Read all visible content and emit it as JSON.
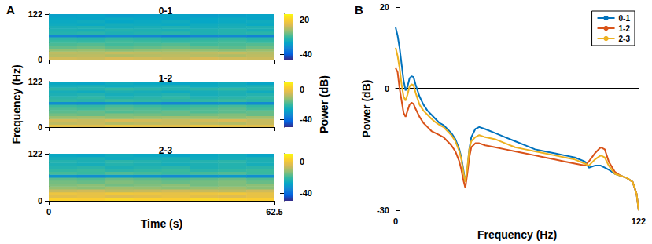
{
  "chart_data": [
    {
      "type": "heatmap",
      "panel": "A",
      "title": "0-1",
      "tick_labels": "y",
      "xlim": [
        0,
        62.5
      ],
      "xticks": [
        0,
        62.5
      ],
      "ylim": [
        0,
        122
      ],
      "yticks": [
        0,
        122
      ],
      "x_bins": [
        0,
        7.8125,
        15.625,
        23.4375,
        31.25,
        39.0625,
        46.875,
        54.6875,
        62.5
      ],
      "y_bins": [
        0,
        7.625,
        15.25,
        22.875,
        30.5,
        38.125,
        45.75,
        53.375,
        61,
        68.625,
        76.25,
        83.875,
        91.5,
        99.125,
        106.75,
        114.375,
        122
      ],
      "cells": [
        [
          9,
          8,
          10,
          9,
          8,
          10,
          9,
          8
        ],
        [
          5,
          6,
          4,
          5,
          6,
          5,
          4,
          6
        ],
        [
          6,
          5,
          7,
          6,
          5,
          6,
          7,
          5
        ],
        [
          0,
          1,
          -1,
          0,
          1,
          0,
          -1,
          1
        ],
        [
          -5,
          -4,
          -6,
          -5,
          -4,
          -5,
          -6,
          -4
        ],
        [
          -8,
          -7,
          -9,
          -8,
          -7,
          -9,
          -8,
          -7
        ],
        [
          -10,
          -11,
          -9,
          -10,
          -11,
          -10,
          -9,
          -11
        ],
        [
          -12,
          -13,
          -11,
          -12,
          -13,
          -12,
          -11,
          -13
        ],
        [
          -30,
          -31,
          -29,
          -30,
          -32,
          -30,
          -29,
          -31
        ],
        [
          -14,
          -13,
          -15,
          -14,
          -13,
          -15,
          -14,
          -13
        ],
        [
          -15,
          -16,
          -14,
          -15,
          -16,
          -15,
          -14,
          -16
        ],
        [
          -16,
          -15,
          -17,
          -16,
          -15,
          -17,
          -16,
          -15
        ],
        [
          -18,
          -19,
          -17,
          -18,
          -19,
          -18,
          -17,
          -19
        ],
        [
          -19,
          -18,
          -20,
          -19,
          -18,
          -20,
          -19,
          -18
        ],
        [
          -20,
          -21,
          -19,
          -20,
          -21,
          -20,
          -19,
          -21
        ],
        [
          -22,
          -21,
          -23,
          -22,
          -21,
          -23,
          -22,
          -21
        ]
      ],
      "colorbar": {
        "range": [
          -50,
          30
        ],
        "ticks": [
          -40,
          20
        ]
      }
    },
    {
      "type": "heatmap",
      "title": "1-2",
      "tick_labels": "y",
      "ylabel": "Frequency (Hz)",
      "xlim": [
        0,
        62.5
      ],
      "xticks": [
        0,
        62.5
      ],
      "ylim": [
        0,
        122
      ],
      "yticks": [
        0,
        122
      ],
      "x_bins": [
        0,
        7.8125,
        15.625,
        23.4375,
        31.25,
        39.0625,
        46.875,
        54.6875,
        62.5
      ],
      "y_bins": [
        0,
        7.625,
        15.25,
        22.875,
        30.5,
        38.125,
        45.75,
        53.375,
        61,
        68.625,
        76.25,
        83.875,
        91.5,
        99.125,
        106.75,
        114.375,
        122
      ],
      "cells": [
        [
          -2,
          -3,
          -1,
          -2,
          -3,
          -1,
          -2,
          -3
        ],
        [
          -8,
          -7,
          -9,
          -8,
          -7,
          -8,
          -9,
          -7
        ],
        [
          -6,
          -7,
          -5,
          -6,
          -7,
          -6,
          -5,
          -7
        ],
        [
          -12,
          -11,
          -13,
          -12,
          -11,
          -12,
          -13,
          -11
        ],
        [
          -15,
          -16,
          -14,
          -15,
          -16,
          -15,
          -14,
          -16
        ],
        [
          -17,
          -16,
          -18,
          -17,
          -16,
          -18,
          -17,
          -16
        ],
        [
          -18,
          -19,
          -17,
          -18,
          -19,
          -18,
          -17,
          -19
        ],
        [
          -20,
          -21,
          -19,
          -20,
          -21,
          -20,
          -19,
          -21
        ],
        [
          -33,
          -34,
          -32,
          -33,
          -35,
          -33,
          -32,
          -34
        ],
        [
          -21,
          -22,
          -20,
          -21,
          -22,
          -21,
          -20,
          -22
        ],
        [
          -22,
          -21,
          -23,
          -22,
          -21,
          -23,
          -22,
          -21
        ],
        [
          -24,
          -23,
          -25,
          -24,
          -23,
          -25,
          -24,
          -23
        ],
        [
          -25,
          -26,
          -24,
          -25,
          -26,
          -25,
          -24,
          -26
        ],
        [
          -22,
          -23,
          -21,
          -22,
          -23,
          -22,
          -21,
          -23
        ],
        [
          -25,
          -24,
          -26,
          -25,
          -24,
          -26,
          -25,
          -24
        ],
        [
          -27,
          -28,
          -26,
          -27,
          -28,
          -27,
          -26,
          -28
        ]
      ],
      "colorbar": {
        "range": [
          -50,
          10
        ],
        "ticks": [
          -40,
          0
        ],
        "label": "Power (dB)"
      }
    },
    {
      "type": "heatmap",
      "title": "2-3",
      "xlabel": "Time (s)",
      "xlim": [
        0,
        62.5
      ],
      "xticks": [
        0,
        62.5
      ],
      "ylim": [
        0,
        122
      ],
      "yticks": [
        0,
        122
      ],
      "x_bins": [
        0,
        7.8125,
        15.625,
        23.4375,
        31.25,
        39.0625,
        46.875,
        54.6875,
        62.5
      ],
      "y_bins": [
        0,
        7.625,
        15.25,
        22.875,
        30.5,
        38.125,
        45.75,
        53.375,
        61,
        68.625,
        76.25,
        83.875,
        91.5,
        99.125,
        106.75,
        114.375,
        122
      ],
      "cells": [
        [
          3,
          2,
          4,
          3,
          2,
          4,
          3,
          2
        ],
        [
          -3,
          -2,
          -4,
          -3,
          -2,
          -3,
          -4,
          -2
        ],
        [
          -1,
          -2,
          0,
          -1,
          -2,
          -1,
          0,
          -2
        ],
        [
          -7,
          -6,
          -8,
          -7,
          -6,
          -7,
          -8,
          -6
        ],
        [
          -12,
          -13,
          -11,
          -12,
          -13,
          -12,
          -11,
          -13
        ],
        [
          -14,
          -13,
          -15,
          -14,
          -13,
          -15,
          -14,
          -13
        ],
        [
          -15,
          -16,
          -14,
          -15,
          -16,
          -15,
          -14,
          -16
        ],
        [
          -17,
          -18,
          -16,
          -17,
          -18,
          -17,
          -16,
          -18
        ],
        [
          -32,
          -33,
          -31,
          -32,
          -34,
          -32,
          -31,
          -33
        ],
        [
          -19,
          -20,
          -18,
          -19,
          -20,
          -19,
          -18,
          -20
        ],
        [
          -21,
          -20,
          -22,
          -21,
          -20,
          -22,
          -21,
          -20
        ],
        [
          -23,
          -22,
          -24,
          -23,
          -22,
          -24,
          -23,
          -22
        ],
        [
          -24,
          -25,
          -23,
          -24,
          -25,
          -24,
          -23,
          -25
        ],
        [
          -23,
          -24,
          -22,
          -23,
          -24,
          -23,
          -22,
          -24
        ],
        [
          -25,
          -24,
          -26,
          -25,
          -24,
          -26,
          -25,
          -24
        ],
        [
          -27,
          -28,
          -26,
          -27,
          -28,
          -27,
          -26,
          -28
        ]
      ],
      "colorbar": {
        "range": [
          -50,
          10
        ],
        "ticks": [
          -40,
          0
        ]
      }
    },
    {
      "type": "line",
      "panel": "B",
      "xlabel": "Frequency (Hz)",
      "ylabel": "Power (dB)",
      "xlim": [
        0,
        122
      ],
      "xticks": [
        0,
        122
      ],
      "ylim": [
        -30,
        20
      ],
      "yticks": [
        -30,
        0,
        20
      ],
      "legend": "upper right",
      "x": [
        0,
        1,
        2,
        3,
        4,
        5,
        6,
        7,
        8,
        9,
        10,
        12,
        14,
        16,
        18,
        20,
        22,
        24,
        26,
        28,
        30,
        32,
        33,
        34,
        35,
        36,
        37,
        38,
        40,
        42,
        45,
        50,
        55,
        60,
        65,
        70,
        75,
        80,
        85,
        90,
        95,
        97,
        100,
        103,
        105,
        107,
        110,
        113,
        116,
        119,
        121,
        122
      ],
      "series": [
        {
          "name": "0-1",
          "color": "#0072bd",
          "values": [
            15,
            13,
            10,
            6,
            2,
            -0.5,
            0.5,
            2.5,
            3,
            2.8,
            1,
            -2,
            -4,
            -5.5,
            -6.5,
            -7.5,
            -8.5,
            -9,
            -10,
            -11,
            -12.5,
            -15,
            -17,
            -20,
            -23,
            -20,
            -15,
            -12,
            -10,
            -9.5,
            -10,
            -11,
            -12,
            -13,
            -14,
            -15,
            -15.5,
            -16,
            -16.5,
            -17,
            -18,
            -19.5,
            -19,
            -19,
            -19.5,
            -20,
            -21,
            -21.5,
            -22,
            -23,
            -26,
            -30
          ]
        },
        {
          "name": "1-2",
          "color": "#d95319",
          "values": [
            5,
            4,
            0,
            -3,
            -6,
            -7,
            -5.5,
            -4,
            -3.5,
            -3.8,
            -5,
            -7,
            -8.5,
            -9.5,
            -10.5,
            -11,
            -11.5,
            -12,
            -13,
            -14,
            -15.5,
            -18,
            -20,
            -22.5,
            -24.5,
            -21,
            -17,
            -14.5,
            -13.5,
            -13.5,
            -14,
            -14.5,
            -15,
            -15.5,
            -16,
            -16.5,
            -17,
            -17.5,
            -18,
            -18.5,
            -19,
            -18,
            -16,
            -14.5,
            -15,
            -18,
            -20.5,
            -21.5,
            -22,
            -23,
            -26,
            -30
          ]
        },
        {
          "name": "2-3",
          "color": "#edb120",
          "values": [
            10,
            8,
            5,
            1,
            -2,
            -3,
            -1.5,
            0.5,
            1,
            0.8,
            -1,
            -4,
            -5.5,
            -6.5,
            -7.5,
            -8.3,
            -9,
            -9.5,
            -10.5,
            -11.5,
            -13,
            -15.5,
            -17.5,
            -20.5,
            -23,
            -19.5,
            -15,
            -13,
            -12,
            -11.5,
            -12,
            -12.5,
            -13.5,
            -14.5,
            -15,
            -15.5,
            -16,
            -16.5,
            -17,
            -17.5,
            -18.5,
            -19,
            -17.5,
            -16.5,
            -17,
            -19,
            -21,
            -21.5,
            -22,
            -23,
            -26,
            -30
          ]
        }
      ]
    }
  ]
}
